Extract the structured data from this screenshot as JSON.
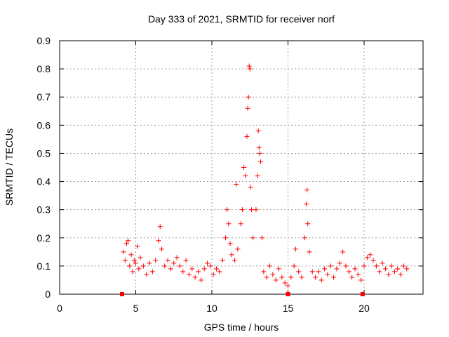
{
  "chart_data": {
    "type": "scatter",
    "title": "Day 333 of 2021, SRMTID for receiver norf",
    "xlabel": "GPS time / hours",
    "ylabel": "SRMTID / TECUs",
    "xlim": [
      0,
      23.87
    ],
    "ylim": [
      0,
      0.9
    ],
    "x_ticks": [
      0,
      5,
      10,
      15,
      20
    ],
    "y_ticks": [
      0,
      0.1,
      0.2,
      0.3,
      0.4,
      0.5,
      0.6,
      0.7,
      0.8,
      0.9
    ],
    "x_tick_labels": [
      "0",
      "5",
      "10",
      "15",
      "20"
    ],
    "y_tick_labels": [
      "0",
      "0.1",
      "0.2",
      "0.3",
      "0.4",
      "0.5",
      "0.6",
      "0.7",
      "0.8",
      "0.9"
    ],
    "grid": true,
    "marker": "+",
    "color": "#ff0000",
    "series": [
      {
        "name": "SRMTID",
        "points": [
          [
            4.2,
            0.15
          ],
          [
            4.3,
            0.12
          ],
          [
            4.4,
            0.18
          ],
          [
            4.5,
            0.19
          ],
          [
            4.6,
            0.1
          ],
          [
            4.7,
            0.14
          ],
          [
            4.8,
            0.08
          ],
          [
            4.9,
            0.12
          ],
          [
            5.0,
            0.11
          ],
          [
            5.1,
            0.17
          ],
          [
            5.2,
            0.09
          ],
          [
            5.3,
            0.13
          ],
          [
            5.5,
            0.1
          ],
          [
            5.7,
            0.07
          ],
          [
            5.9,
            0.11
          ],
          [
            6.1,
            0.08
          ],
          [
            6.3,
            0.12
          ],
          [
            6.5,
            0.19
          ],
          [
            6.6,
            0.24
          ],
          [
            6.7,
            0.16
          ],
          [
            6.9,
            0.1
          ],
          [
            7.1,
            0.12
          ],
          [
            7.3,
            0.09
          ],
          [
            7.5,
            0.11
          ],
          [
            7.7,
            0.13
          ],
          [
            7.9,
            0.1
          ],
          [
            8.1,
            0.08
          ],
          [
            8.3,
            0.12
          ],
          [
            8.5,
            0.07
          ],
          [
            8.7,
            0.09
          ],
          [
            8.9,
            0.06
          ],
          [
            9.1,
            0.08
          ],
          [
            9.3,
            0.05
          ],
          [
            9.5,
            0.09
          ],
          [
            9.7,
            0.11
          ],
          [
            9.9,
            0.1
          ],
          [
            10.1,
            0.07
          ],
          [
            10.3,
            0.09
          ],
          [
            10.5,
            0.08
          ],
          [
            10.7,
            0.12
          ],
          [
            10.9,
            0.2
          ],
          [
            11.0,
            0.3
          ],
          [
            11.1,
            0.25
          ],
          [
            11.2,
            0.18
          ],
          [
            11.3,
            0.14
          ],
          [
            11.5,
            0.12
          ],
          [
            11.6,
            0.39
          ],
          [
            11.7,
            0.16
          ],
          [
            11.9,
            0.25
          ],
          [
            12.0,
            0.3
          ],
          [
            12.1,
            0.45
          ],
          [
            12.2,
            0.42
          ],
          [
            12.3,
            0.56
          ],
          [
            12.35,
            0.66
          ],
          [
            12.4,
            0.7
          ],
          [
            12.45,
            0.81
          ],
          [
            12.5,
            0.8
          ],
          [
            12.55,
            0.38
          ],
          [
            12.6,
            0.3
          ],
          [
            12.7,
            0.2
          ],
          [
            12.9,
            0.3
          ],
          [
            13.0,
            0.42
          ],
          [
            13.05,
            0.58
          ],
          [
            13.1,
            0.52
          ],
          [
            13.15,
            0.5
          ],
          [
            13.2,
            0.47
          ],
          [
            13.3,
            0.2
          ],
          [
            13.4,
            0.08
          ],
          [
            13.6,
            0.06
          ],
          [
            13.8,
            0.1
          ],
          [
            14.0,
            0.07
          ],
          [
            14.2,
            0.05
          ],
          [
            14.4,
            0.09
          ],
          [
            14.6,
            0.06
          ],
          [
            14.8,
            0.04
          ],
          [
            15.0,
            0.03
          ],
          [
            15.2,
            0.06
          ],
          [
            15.4,
            0.1
          ],
          [
            15.5,
            0.16
          ],
          [
            15.7,
            0.08
          ],
          [
            15.9,
            0.06
          ],
          [
            16.1,
            0.2
          ],
          [
            16.2,
            0.32
          ],
          [
            16.25,
            0.37
          ],
          [
            16.3,
            0.25
          ],
          [
            16.4,
            0.15
          ],
          [
            16.6,
            0.08
          ],
          [
            16.8,
            0.06
          ],
          [
            17.0,
            0.08
          ],
          [
            17.2,
            0.05
          ],
          [
            17.4,
            0.09
          ],
          [
            17.6,
            0.07
          ],
          [
            17.8,
            0.1
          ],
          [
            18.0,
            0.06
          ],
          [
            18.2,
            0.09
          ],
          [
            18.4,
            0.11
          ],
          [
            18.6,
            0.15
          ],
          [
            18.8,
            0.1
          ],
          [
            19.0,
            0.08
          ],
          [
            19.2,
            0.06
          ],
          [
            19.4,
            0.09
          ],
          [
            19.6,
            0.07
          ],
          [
            19.8,
            0.05
          ],
          [
            20.0,
            0.1
          ],
          [
            20.2,
            0.13
          ],
          [
            20.4,
            0.14
          ],
          [
            20.6,
            0.12
          ],
          [
            20.8,
            0.1
          ],
          [
            21.0,
            0.08
          ],
          [
            21.2,
            0.11
          ],
          [
            21.4,
            0.09
          ],
          [
            21.6,
            0.07
          ],
          [
            21.8,
            0.1
          ],
          [
            22.0,
            0.08
          ],
          [
            22.2,
            0.09
          ],
          [
            22.4,
            0.07
          ],
          [
            22.6,
            0.1
          ],
          [
            22.8,
            0.09
          ]
        ]
      },
      {
        "name": "zero-markers",
        "marker": "square",
        "points": [
          [
            4.1,
            0
          ],
          [
            15.0,
            0
          ],
          [
            19.9,
            0
          ]
        ]
      }
    ]
  }
}
